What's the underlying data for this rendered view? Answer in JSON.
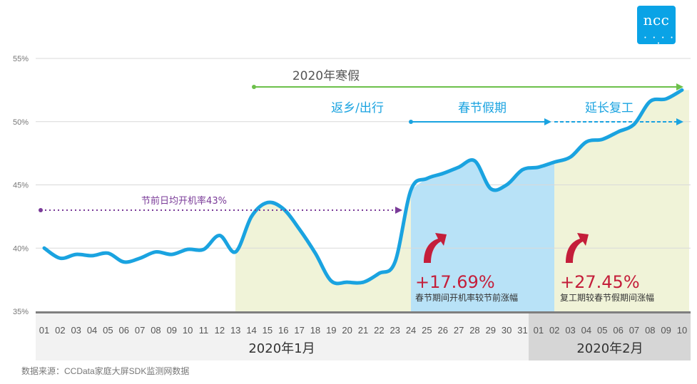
{
  "logo": {
    "text": "ncc",
    "dots": "• • • • •"
  },
  "source": "数据来源：CCData家庭大屏SDK监测网数据",
  "chart_data": {
    "type": "line",
    "ylim": [
      35,
      55
    ],
    "yticks": [
      "35%",
      "40%",
      "45%",
      "50%",
      "55%"
    ],
    "ytick_values": [
      35,
      40,
      45,
      50,
      55
    ],
    "x": [
      "01",
      "02",
      "03",
      "04",
      "05",
      "06",
      "07",
      "08",
      "09",
      "10",
      "11",
      "12",
      "13",
      "14",
      "15",
      "16",
      "17",
      "18",
      "19",
      "20",
      "21",
      "22",
      "23",
      "24",
      "25",
      "26",
      "27",
      "28",
      "29",
      "30",
      "31",
      "01",
      "02",
      "03",
      "04",
      "05",
      "06",
      "07",
      "08",
      "09",
      "10"
    ],
    "months": [
      {
        "label": "2020年1月",
        "start": 0,
        "end": 30
      },
      {
        "label": "2020年2月",
        "start": 31,
        "end": 40
      }
    ],
    "series": [
      {
        "values": [
          40.0,
          39.2,
          39.5,
          39.4,
          39.6,
          38.9,
          39.2,
          39.7,
          39.5,
          39.9,
          39.9,
          41.0,
          39.7,
          42.5,
          43.6,
          43.1,
          41.5,
          39.6,
          37.4,
          37.3,
          37.3,
          38.0,
          38.9,
          44.6,
          45.5,
          45.9,
          46.4,
          46.9,
          44.7,
          45.0,
          46.2,
          46.4,
          46.8,
          47.2,
          48.4,
          48.6,
          49.2,
          49.8,
          51.6,
          51.8,
          52.5
        ]
      }
    ],
    "colors": {
      "line": "#1aa3e0",
      "spring": "#b8e2f7",
      "shade": "#f0f3d8",
      "green": "#6cc04a",
      "blue": "#1aa3e0",
      "purple": "#7a3b98",
      "red": "#c41e3a"
    },
    "annotations": {
      "pre_holiday_label": "节前日均开机率43%",
      "pre_holiday_value": 43,
      "winter_break": "2020年寒假",
      "return_home": "返乡/出行",
      "spring_festival": "春节假期",
      "extended": "延长复工",
      "pct1": "+17.69%",
      "pct1_desc": "春节期间开机率较节前涨幅",
      "pct2": "+27.45%",
      "pct2_desc": "复工期较春节假期间涨幅"
    },
    "grid": true
  }
}
